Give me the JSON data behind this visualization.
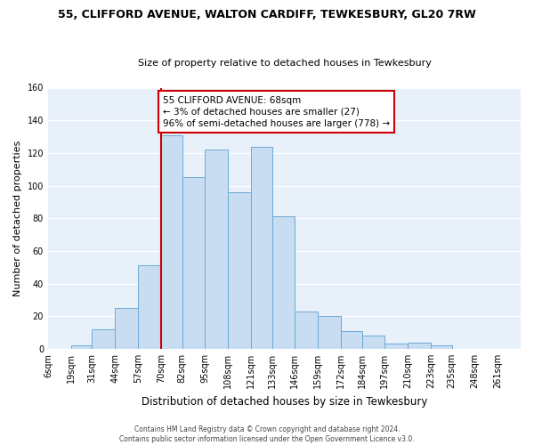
{
  "title": "55, CLIFFORD AVENUE, WALTON CARDIFF, TEWKESBURY, GL20 7RW",
  "subtitle": "Size of property relative to detached houses in Tewkesbury",
  "xlabel": "Distribution of detached houses by size in Tewkesbury",
  "ylabel": "Number of detached properties",
  "bin_labels": [
    "6sqm",
    "19sqm",
    "31sqm",
    "44sqm",
    "57sqm",
    "70sqm",
    "82sqm",
    "95sqm",
    "108sqm",
    "121sqm",
    "133sqm",
    "146sqm",
    "159sqm",
    "172sqm",
    "184sqm",
    "197sqm",
    "210sqm",
    "223sqm",
    "235sqm",
    "248sqm",
    "261sqm"
  ],
  "bin_edges": [
    6,
    19,
    31,
    44,
    57,
    70,
    82,
    95,
    108,
    121,
    133,
    146,
    159,
    172,
    184,
    197,
    210,
    223,
    235,
    248,
    261
  ],
  "bar_heights": [
    0,
    2,
    12,
    25,
    51,
    131,
    105,
    122,
    96,
    124,
    81,
    23,
    20,
    11,
    8,
    3,
    4,
    2,
    0,
    0
  ],
  "bar_color": "#c9ddf2",
  "bar_edge_color": "#6aaad4",
  "vline_x": 70,
  "vline_color": "#cc0000",
  "annotation_line1": "55 CLIFFORD AVENUE: 68sqm",
  "annotation_line2": "← 3% of detached houses are smaller (27)",
  "annotation_line3": "96% of semi-detached houses are larger (778) →",
  "annotation_box_facecolor": "#ffffff",
  "annotation_box_edgecolor": "#cc0000",
  "ylim": [
    0,
    160
  ],
  "yticks": [
    0,
    20,
    40,
    60,
    80,
    100,
    120,
    140,
    160
  ],
  "figure_facecolor": "#ffffff",
  "axes_facecolor": "#e8f0fa",
  "footer_line1": "Contains HM Land Registry data © Crown copyright and database right 2024.",
  "footer_line2": "Contains public sector information licensed under the Open Government Licence v3.0.",
  "grid_color": "#ffffff",
  "title_fontsize": 9,
  "subtitle_fontsize": 8,
  "ylabel_fontsize": 8,
  "xlabel_fontsize": 8.5,
  "tick_fontsize": 7,
  "footer_fontsize": 5.5,
  "annot_fontsize": 7.5
}
